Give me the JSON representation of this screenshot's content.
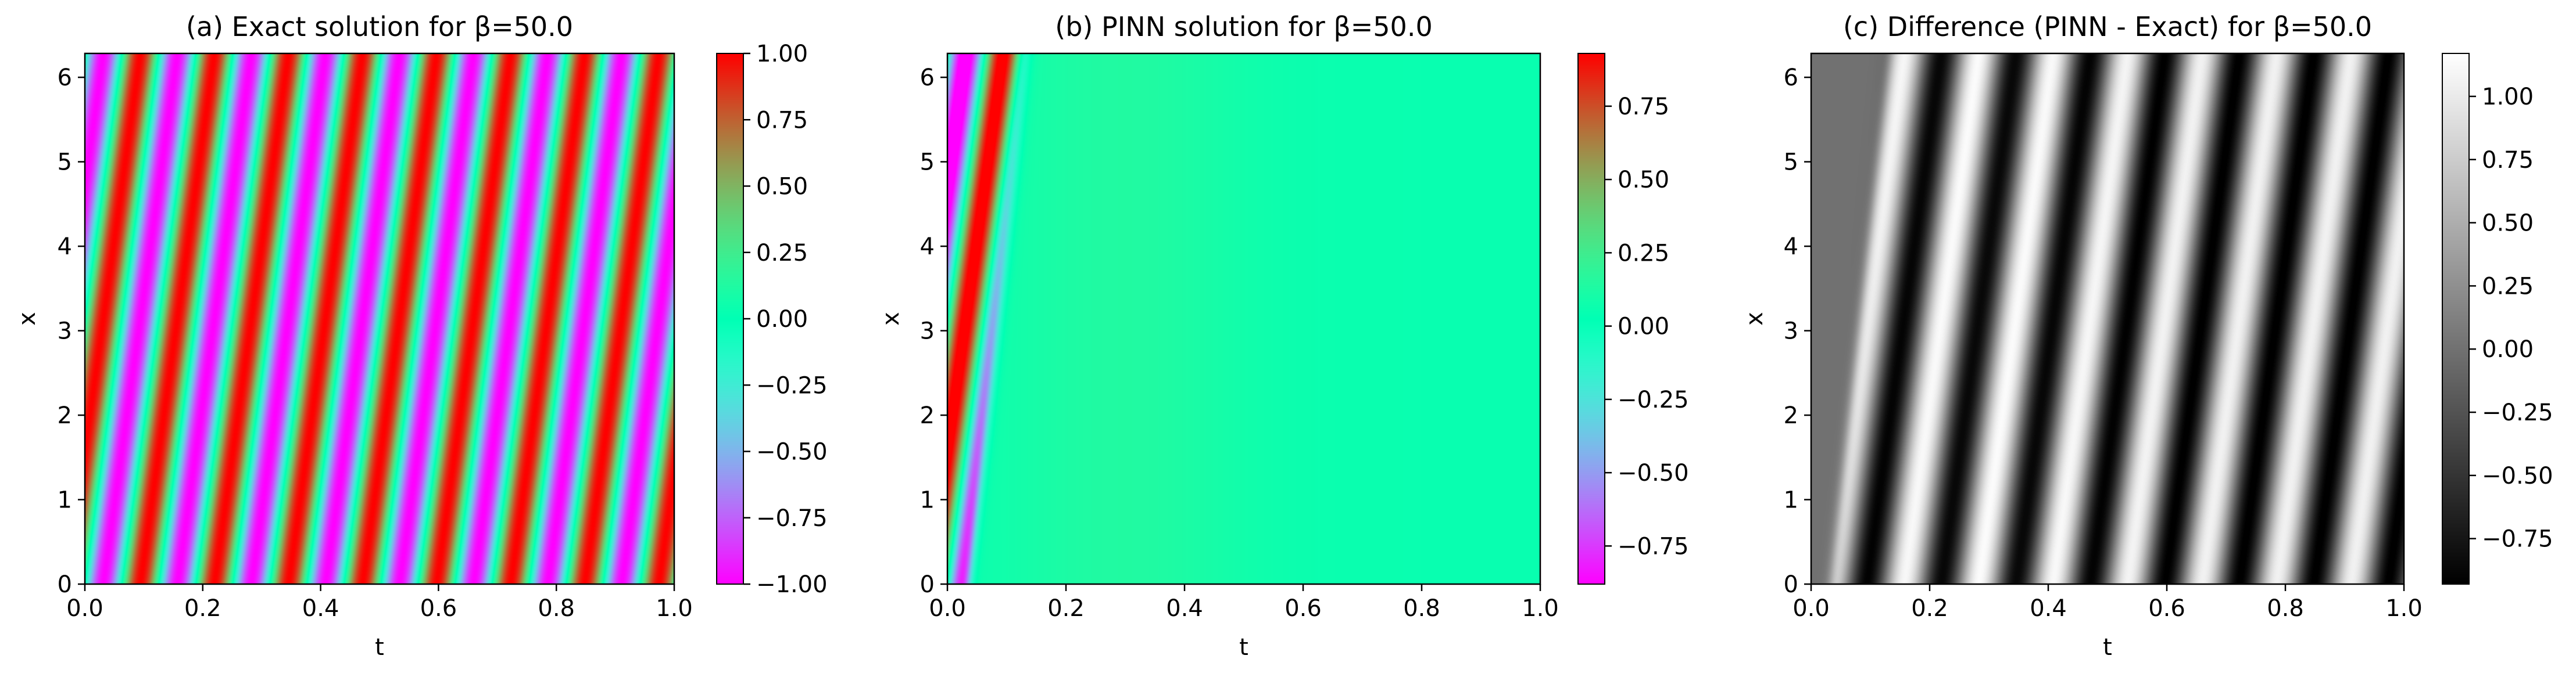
{
  "chart_data": [
    {
      "type": "heatmap",
      "title": "(a) Exact solution for β=50.0",
      "xlabel": "t",
      "ylabel": "x",
      "xlim": [
        0.0,
        1.0
      ],
      "ylim": [
        0.0,
        6.283
      ],
      "x_ticks": [
        "0.0",
        "0.2",
        "0.4",
        "0.6",
        "0.8",
        "1.0"
      ],
      "y_ticks": [
        "0",
        "1",
        "2",
        "3",
        "4",
        "5",
        "6"
      ],
      "colormap": "rainbow",
      "field": "sin(x - 50 t)",
      "beta": 50.0,
      "colorbar": {
        "min": -1.0,
        "max": 1.0,
        "ticks": [
          1.0,
          0.75,
          0.5,
          0.25,
          0.0,
          -0.25,
          -0.5,
          -0.75,
          -1.0
        ],
        "tick_labels": [
          "1.00",
          "0.75",
          "0.50",
          "0.25",
          "0.00",
          "−0.25",
          "−0.50",
          "−0.75",
          "−1.00"
        ]
      }
    },
    {
      "type": "heatmap",
      "title": "(b) PINN solution for β=50.0",
      "xlabel": "t",
      "ylabel": "x",
      "xlim": [
        0.0,
        1.0
      ],
      "ylim": [
        0.0,
        6.283
      ],
      "x_ticks": [
        "0.0",
        "0.2",
        "0.4",
        "0.6",
        "0.8",
        "1.0"
      ],
      "y_ticks": [
        "0",
        "1",
        "2",
        "3",
        "4",
        "5",
        "6"
      ],
      "colormap": "rainbow",
      "field": "initial condition sin(x) in a narrow strip near t=0, then an almost constant value of about 0.06 (peak about 0.15 near t=0.3)",
      "colorbar": {
        "min": -0.88,
        "max": 0.93,
        "ticks": [
          0.75,
          0.5,
          0.25,
          0.0,
          -0.25,
          -0.5,
          -0.75
        ],
        "tick_labels": [
          "0.75",
          "0.50",
          "0.25",
          "0.00",
          "−0.25",
          "−0.50",
          "−0.75"
        ]
      }
    },
    {
      "type": "heatmap",
      "title": "(c) Difference (PINN - Exact) for β=50.0",
      "xlabel": "t",
      "ylabel": "x",
      "xlim": [
        0.0,
        1.0
      ],
      "ylim": [
        0.0,
        6.283
      ],
      "x_ticks": [
        "0.0",
        "0.2",
        "0.4",
        "0.6",
        "0.8",
        "1.0"
      ],
      "y_ticks": [
        "0",
        "1",
        "2",
        "3",
        "4",
        "5",
        "6"
      ],
      "colormap": "gray",
      "field": "PINN solution minus exact solution",
      "colorbar": {
        "min": -0.93,
        "max": 1.17,
        "ticks": [
          1.0,
          0.75,
          0.5,
          0.25,
          0.0,
          -0.25,
          -0.5,
          -0.75
        ],
        "tick_labels": [
          "1.00",
          "0.75",
          "0.50",
          "0.25",
          "0.00",
          "−0.25",
          "−0.50",
          "−0.75"
        ]
      }
    }
  ]
}
